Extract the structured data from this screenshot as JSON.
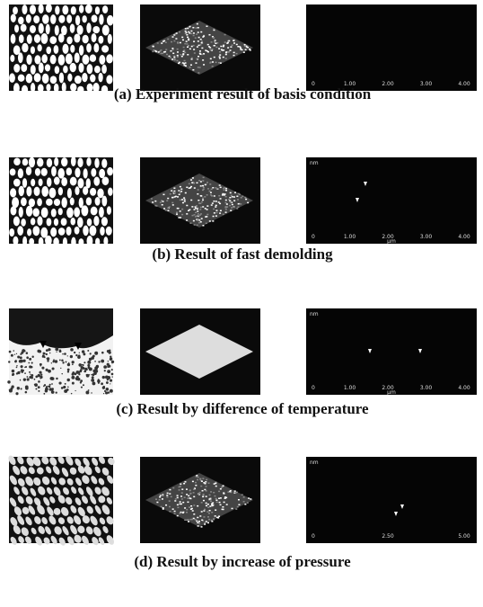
{
  "figure": {
    "rows": [
      {
        "caption": "(a) Experiment result of basis condition",
        "profile": {
          "x_labels": [
            "0",
            "1.00",
            "2.00",
            "3.00",
            "4.00"
          ]
        }
      },
      {
        "caption": "(b) Result of fast demolding",
        "profile": {
          "y_unit": "nm",
          "x_unit": "μm",
          "x_labels": [
            "0",
            "1.00",
            "2.00",
            "3.00",
            "4.00"
          ]
        }
      },
      {
        "caption": "(c) Result by difference of temperature",
        "profile": {
          "y_unit": "nm",
          "x_unit": "μm",
          "x_labels": [
            "0",
            "1.00",
            "2.00",
            "3.00",
            "4.00"
          ]
        }
      },
      {
        "caption": "(d) Result by increase of pressure",
        "profile": {
          "y_unit": "nm",
          "x_labels": [
            "0",
            "2.50",
            "5.00"
          ]
        }
      }
    ]
  }
}
